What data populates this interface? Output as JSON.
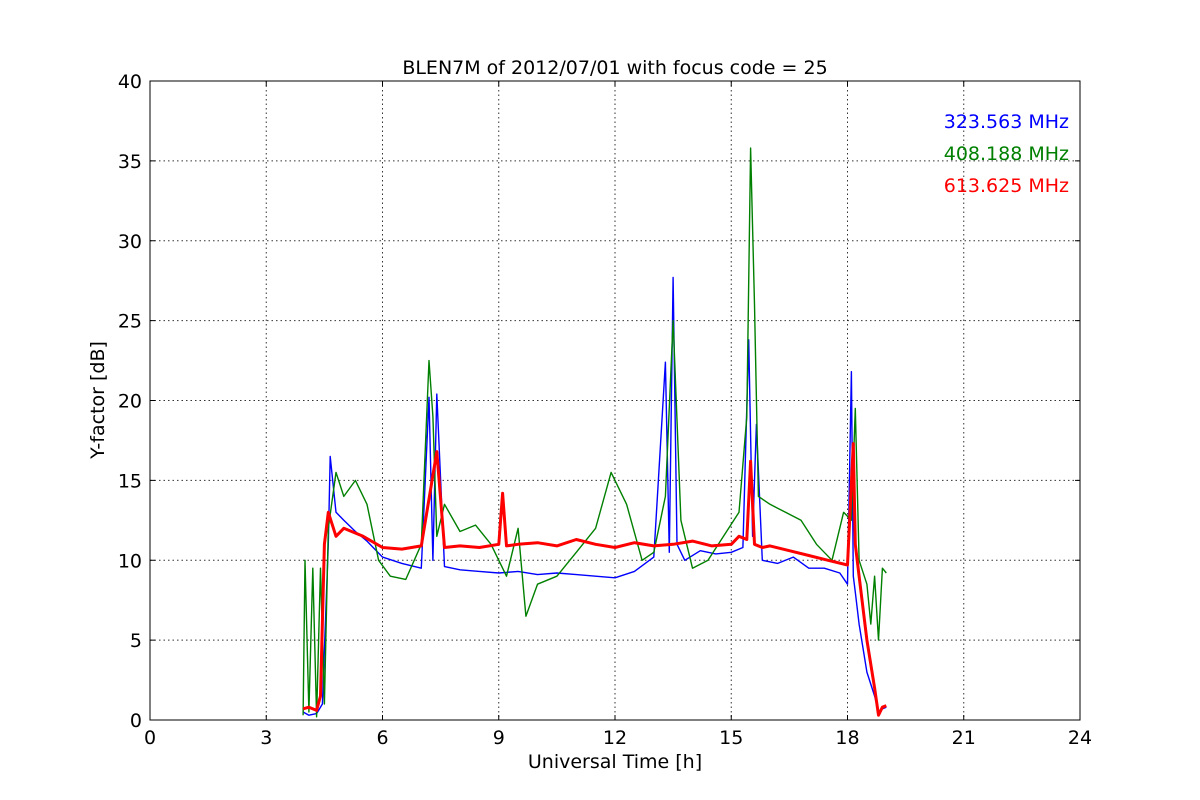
{
  "chart_data": {
    "type": "line",
    "title": "BLEN7M of 2012/07/01 with focus code = 25",
    "xlabel": "Universal Time [h]",
    "ylabel": "Y-factor [dB]",
    "xlim": [
      0,
      24
    ],
    "ylim": [
      0,
      40
    ],
    "xticks": [
      0,
      3,
      6,
      9,
      12,
      15,
      18,
      21,
      24
    ],
    "yticks": [
      0,
      5,
      10,
      15,
      20,
      25,
      30,
      35,
      40
    ],
    "grid": true,
    "legend_position": "top-right",
    "series": [
      {
        "name": "323.563 MHz",
        "color": "#0000ff",
        "x": [
          3.95,
          4.1,
          4.3,
          4.45,
          4.6,
          4.65,
          4.8,
          5.0,
          5.3,
          5.6,
          6.0,
          6.5,
          7.0,
          7.2,
          7.3,
          7.4,
          7.6,
          8.0,
          8.5,
          9.0,
          9.5,
          10.0,
          10.5,
          11.0,
          11.5,
          12.0,
          12.5,
          13.0,
          13.3,
          13.4,
          13.5,
          13.6,
          13.8,
          14.2,
          14.6,
          15.0,
          15.3,
          15.45,
          15.55,
          15.65,
          15.8,
          16.2,
          16.6,
          17.0,
          17.4,
          17.8,
          18.0,
          18.1,
          18.15,
          18.2,
          18.3,
          18.5,
          18.7,
          18.8,
          18.9,
          19.0
        ],
        "y": [
          0.5,
          0.3,
          0.4,
          1.0,
          11.0,
          16.5,
          13.0,
          12.5,
          11.8,
          11.2,
          10.2,
          9.8,
          9.5,
          20.2,
          10.0,
          20.4,
          9.6,
          9.4,
          9.3,
          9.2,
          9.3,
          9.1,
          9.2,
          9.1,
          9.0,
          8.9,
          9.3,
          10.2,
          22.4,
          10.5,
          27.7,
          11.0,
          10.0,
          10.6,
          10.4,
          10.5,
          10.8,
          23.8,
          11.5,
          18.5,
          10.0,
          9.8,
          10.2,
          9.5,
          9.5,
          9.2,
          8.5,
          21.8,
          9.0,
          8.0,
          6.0,
          3.0,
          1.5,
          0.5,
          0.7,
          0.8
        ]
      },
      {
        "name": "408.188 MHz",
        "color": "#008000",
        "x": [
          3.95,
          4.0,
          4.1,
          4.2,
          4.3,
          4.4,
          4.5,
          4.6,
          4.8,
          5.0,
          5.3,
          5.6,
          5.9,
          6.2,
          6.6,
          7.0,
          7.2,
          7.3,
          7.4,
          7.6,
          8.0,
          8.4,
          8.8,
          9.2,
          9.5,
          9.7,
          10.0,
          10.5,
          11.0,
          11.5,
          11.9,
          12.3,
          12.7,
          13.0,
          13.3,
          13.5,
          13.7,
          14.0,
          14.4,
          14.8,
          15.2,
          15.4,
          15.5,
          15.6,
          15.7,
          16.0,
          16.4,
          16.8,
          17.2,
          17.6,
          17.9,
          18.1,
          18.2,
          18.3,
          18.5,
          18.6,
          18.7,
          18.8,
          18.9,
          19.0
        ],
        "y": [
          0.3,
          10.0,
          0.5,
          9.5,
          0.2,
          9.5,
          1.0,
          12.0,
          15.5,
          14.0,
          15.0,
          13.5,
          10.0,
          9.0,
          8.8,
          11.0,
          22.5,
          19.0,
          11.5,
          13.5,
          11.8,
          12.2,
          11.0,
          9.0,
          12.0,
          6.5,
          8.5,
          9.0,
          10.5,
          12.0,
          15.5,
          13.5,
          10.0,
          10.5,
          14.0,
          25.0,
          12.5,
          9.5,
          10.0,
          11.5,
          13.0,
          19.0,
          35.8,
          26.0,
          14.0,
          13.5,
          13.0,
          12.5,
          11.0,
          10.0,
          13.0,
          12.5,
          19.5,
          10.0,
          8.5,
          6.0,
          9.0,
          5.0,
          9.5,
          9.2
        ]
      },
      {
        "name": "613.625 MHz",
        "color": "#ff0000",
        "x": [
          3.95,
          4.1,
          4.3,
          4.4,
          4.5,
          4.6,
          4.8,
          5.0,
          5.5,
          6.0,
          6.5,
          7.0,
          7.4,
          7.6,
          8.0,
          8.5,
          9.0,
          9.1,
          9.2,
          9.5,
          10.0,
          10.5,
          11.0,
          11.5,
          12.0,
          12.5,
          13.0,
          13.5,
          14.0,
          14.5,
          15.0,
          15.2,
          15.4,
          15.5,
          15.6,
          15.8,
          16.0,
          16.5,
          17.0,
          17.5,
          18.0,
          18.15,
          18.2,
          18.3,
          18.5,
          18.7,
          18.8,
          18.9,
          19.0
        ],
        "y": [
          0.7,
          0.8,
          0.6,
          1.5,
          11.0,
          13.0,
          11.5,
          12.0,
          11.5,
          10.8,
          10.7,
          10.9,
          16.8,
          10.8,
          10.9,
          10.8,
          11.0,
          14.2,
          10.9,
          11.0,
          11.1,
          10.9,
          11.3,
          11.0,
          10.8,
          11.1,
          10.9,
          11.0,
          11.2,
          10.9,
          11.0,
          11.5,
          11.3,
          16.2,
          11.0,
          10.8,
          10.9,
          10.6,
          10.3,
          10.0,
          9.7,
          17.3,
          11.0,
          9.0,
          5.0,
          2.0,
          0.3,
          0.8,
          0.9
        ]
      }
    ]
  }
}
